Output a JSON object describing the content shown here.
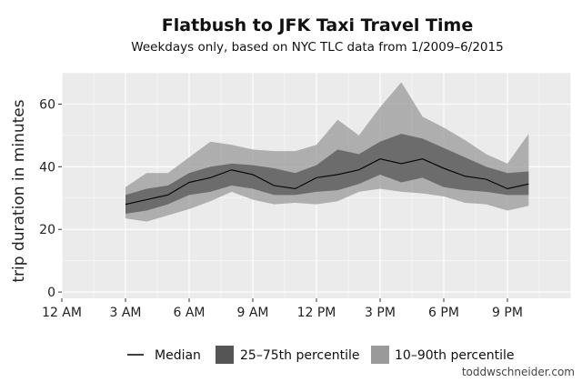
{
  "chart_data": {
    "type": "line",
    "title": "Flatbush to JFK Taxi Travel Time",
    "subtitle": "Weekdays only, based on NYC TLC data from 1/2009–6/2015",
    "xlabel": "",
    "ylabel": "trip duration in minutes",
    "xlim": [
      0,
      24
    ],
    "ylim": [
      -2,
      70
    ],
    "x_ticks": [
      {
        "value": 0,
        "label": "12 AM"
      },
      {
        "value": 3,
        "label": "3 AM"
      },
      {
        "value": 6,
        "label": "6 AM"
      },
      {
        "value": 9,
        "label": "9 AM"
      },
      {
        "value": 12,
        "label": "12 PM"
      },
      {
        "value": 15,
        "label": "3 PM"
      },
      {
        "value": 18,
        "label": "6 PM"
      },
      {
        "value": 21,
        "label": "9 PM"
      }
    ],
    "y_ticks": [
      0,
      20,
      40,
      60
    ],
    "grid": true,
    "legend_position": "bottom",
    "x": [
      3,
      4,
      5,
      6,
      7,
      8,
      9,
      10,
      11,
      12,
      13,
      14,
      15,
      16,
      17,
      18,
      19,
      20,
      21,
      22
    ],
    "series": [
      {
        "name": "Median",
        "kind": "line",
        "color": "#000000",
        "values": [
          28,
          29.5,
          31,
          35,
          36.5,
          39,
          37.5,
          34,
          33,
          36.5,
          37.5,
          39,
          42.5,
          41,
          42.5,
          39.5,
          37,
          36,
          33,
          34.5
        ]
      },
      {
        "name": "25–75th percentile",
        "kind": "band",
        "color": "#555555",
        "lower": [
          25,
          26,
          28,
          31,
          32,
          34,
          33,
          31,
          31,
          32,
          32.5,
          34.5,
          37.5,
          35,
          36.5,
          33.5,
          32.5,
          32,
          31,
          31
        ],
        "upper": [
          31,
          33,
          34,
          38,
          40,
          41,
          40.5,
          39.5,
          38,
          40.5,
          45.5,
          44,
          48,
          50.5,
          49,
          46,
          43,
          40,
          38,
          38.5
        ]
      },
      {
        "name": "10–90th percentile",
        "kind": "band",
        "color": "#9a9a9a",
        "lower": [
          23.5,
          22.5,
          24.5,
          26.5,
          29,
          32,
          29.5,
          28,
          28.5,
          28,
          29,
          32,
          33,
          32,
          31.5,
          30.5,
          28.5,
          28,
          26,
          27.5
        ],
        "upper": [
          33.5,
          38,
          38,
          43,
          48,
          47,
          45.5,
          45,
          45,
          47,
          55,
          50,
          59,
          67,
          56,
          52.5,
          48.5,
          44,
          41,
          50.5
        ]
      }
    ]
  },
  "credit": "toddwschneider.com"
}
